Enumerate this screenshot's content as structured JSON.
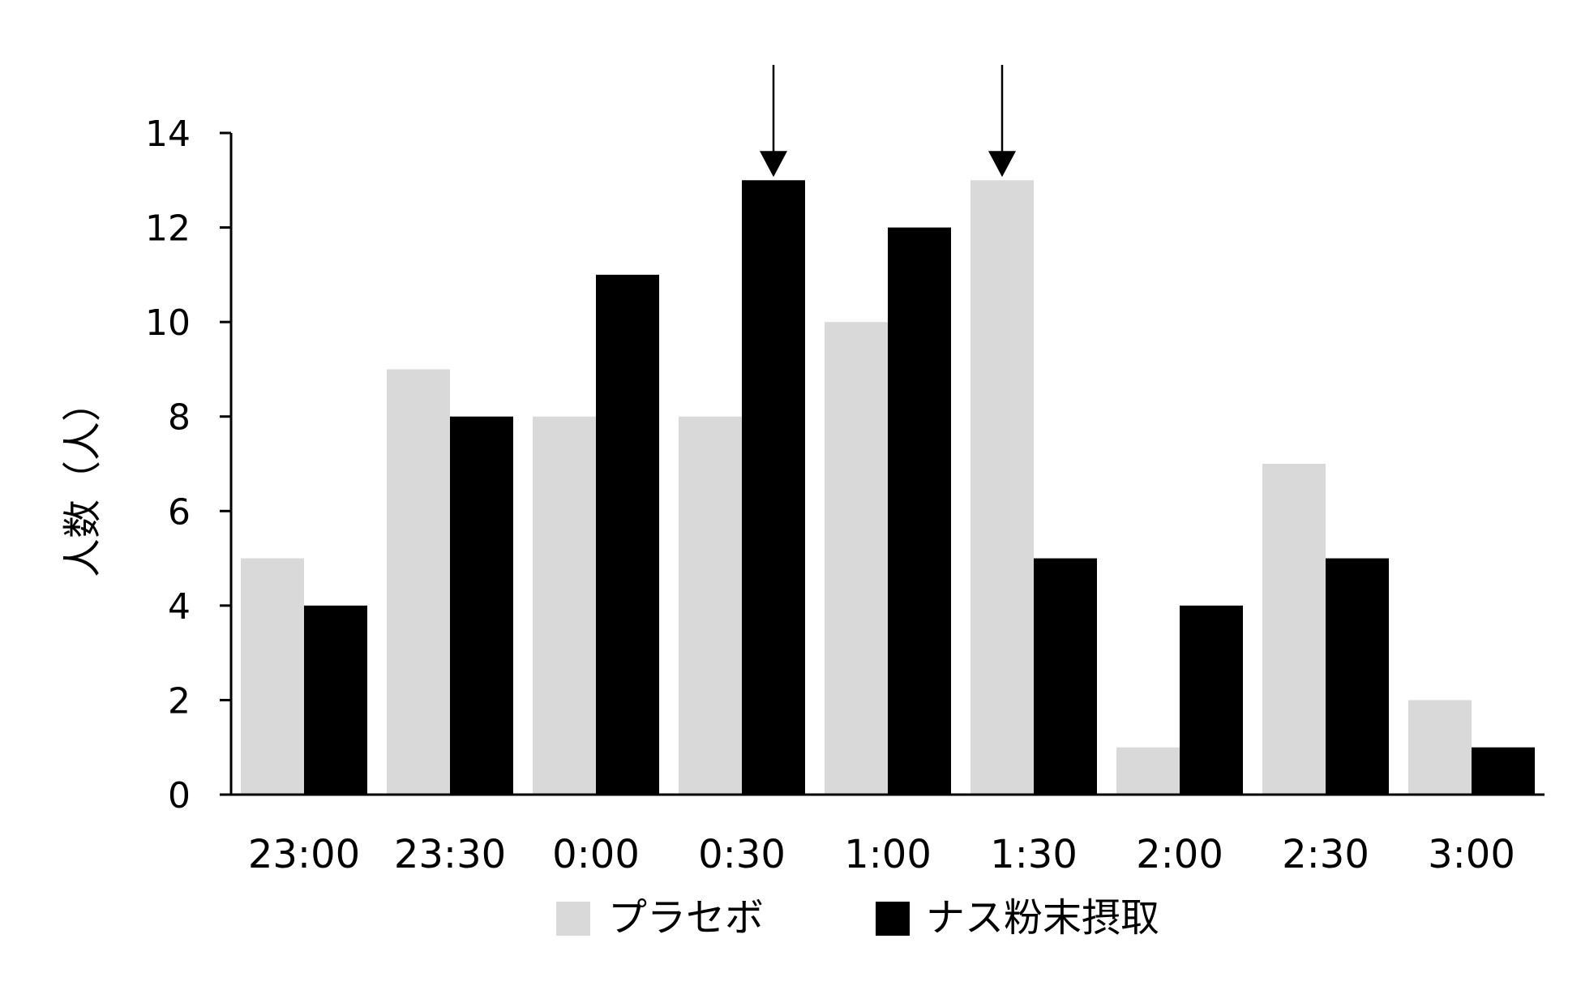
{
  "chart_data": {
    "type": "bar",
    "title": "",
    "xlabel": "",
    "ylabel": "人数（人）",
    "ylim": [
      0,
      14
    ],
    "yticks": [
      0,
      2,
      4,
      6,
      8,
      10,
      12,
      14
    ],
    "categories": [
      "23:00",
      "23:30",
      "0:00",
      "0:30",
      "1:00",
      "1:30",
      "2:00",
      "2:30",
      "3:00"
    ],
    "series": [
      {
        "name": "プラセボ",
        "color": "#d9d9d9",
        "values": [
          5,
          9,
          8,
          8,
          10,
          13,
          1,
          7,
          2
        ]
      },
      {
        "name": "ナス粉末摂取",
        "color": "#000000",
        "values": [
          4,
          8,
          11,
          13,
          12,
          5,
          4,
          5,
          1
        ]
      }
    ],
    "annotations": [
      {
        "type": "arrow-down",
        "category": "0:30",
        "series": "ナス粉末摂取"
      },
      {
        "type": "arrow-down",
        "category": "1:30",
        "series": "プラセボ"
      }
    ],
    "grid": false,
    "legend": "bottom"
  }
}
